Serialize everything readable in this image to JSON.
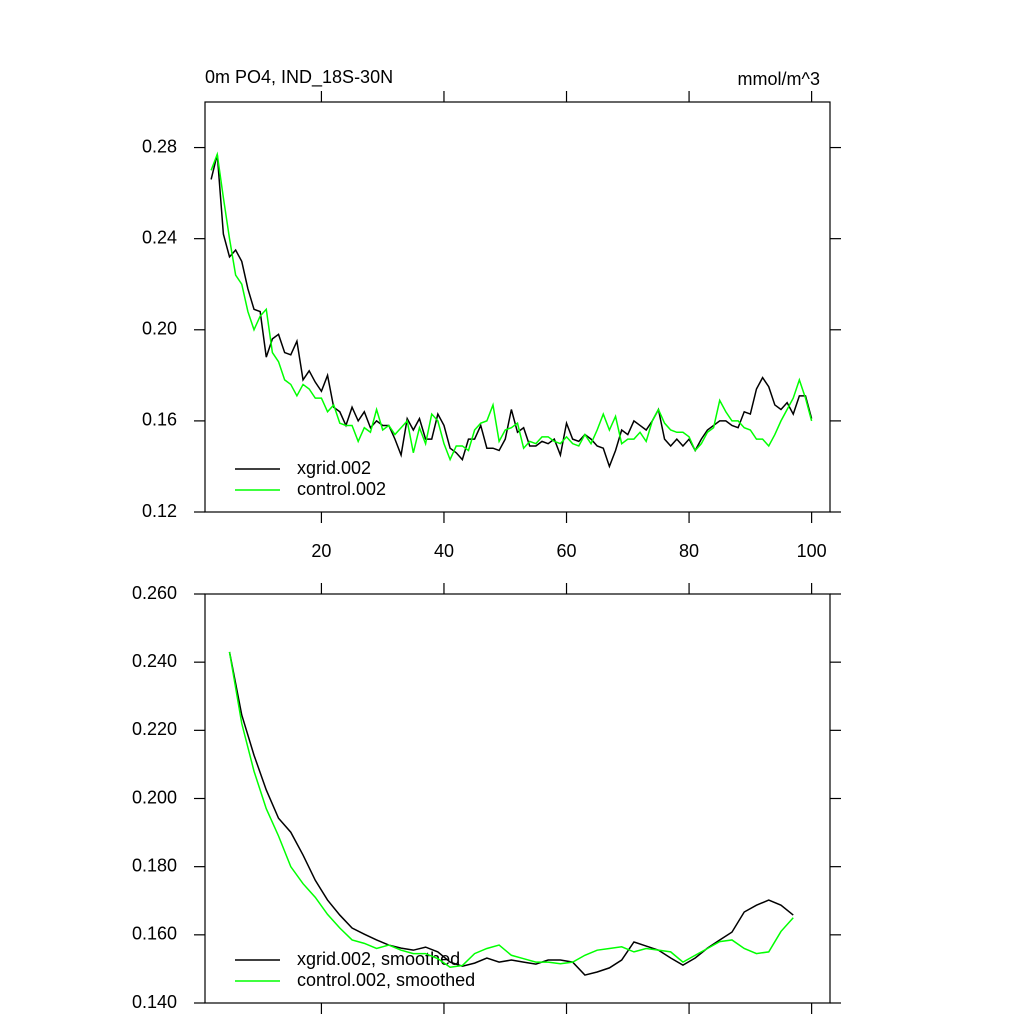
{
  "chart_data": [
    {
      "type": "line",
      "title": "0m PO4, IND_18S-30N",
      "units": "mmol/m^3",
      "xlim": [
        1,
        103
      ],
      "ylim": [
        0.12,
        0.3
      ],
      "xticks": [
        20,
        40,
        60,
        80,
        100
      ],
      "xtick_labels": true,
      "yticks": [
        0.12,
        0.16,
        {
          "value": 0.2,
          "label": "0.20"
        },
        0.24,
        0.28
      ],
      "legend": "lower left",
      "x": [
        2,
        3,
        4,
        5,
        6,
        7,
        8,
        9,
        10,
        11,
        12,
        13,
        14,
        15,
        16,
        17,
        18,
        19,
        20,
        21,
        22,
        23,
        24,
        25,
        26,
        27,
        28,
        29,
        30,
        31,
        32,
        33,
        34,
        35,
        36,
        37,
        38,
        39,
        40,
        41,
        42,
        43,
        44,
        45,
        46,
        47,
        48,
        49,
        50,
        51,
        52,
        53,
        54,
        55,
        56,
        57,
        58,
        59,
        60,
        61,
        62,
        63,
        64,
        65,
        66,
        67,
        68,
        69,
        70,
        71,
        72,
        73,
        74,
        75,
        76,
        77,
        78,
        79,
        80,
        81,
        82,
        83,
        84,
        85,
        86,
        87,
        88,
        89,
        90,
        91,
        92,
        93,
        94,
        95,
        96,
        97,
        98,
        99,
        100
      ],
      "series": [
        {
          "name": "xgrid.002",
          "color": "#000000",
          "values": [
            0.266,
            0.277,
            0.242,
            0.232,
            0.235,
            0.23,
            0.218,
            0.209,
            0.208,
            0.188,
            0.196,
            0.198,
            0.19,
            0.189,
            0.195,
            0.178,
            0.182,
            0.177,
            0.173,
            0.18,
            0.166,
            0.164,
            0.158,
            0.166,
            0.16,
            0.164,
            0.157,
            0.16,
            0.158,
            0.158,
            0.152,
            0.145,
            0.161,
            0.156,
            0.161,
            0.152,
            0.152,
            0.163,
            0.158,
            0.148,
            0.146,
            0.143,
            0.152,
            0.152,
            0.158,
            0.148,
            0.148,
            0.147,
            0.152,
            0.165,
            0.155,
            0.157,
            0.149,
            0.149,
            0.151,
            0.15,
            0.152,
            0.145,
            0.159,
            0.152,
            0.151,
            0.154,
            0.152,
            0.149,
            0.148,
            0.14,
            0.147,
            0.156,
            0.154,
            0.16,
            0.158,
            0.156,
            0.16,
            0.165,
            0.152,
            0.149,
            0.152,
            0.149,
            0.152,
            0.147,
            0.152,
            0.156,
            0.158,
            0.16,
            0.16,
            0.158,
            0.157,
            0.164,
            0.163,
            0.174,
            0.179,
            0.175,
            0.167,
            0.165,
            0.168,
            0.163,
            0.171,
            0.171,
            0.161
          ]
        },
        {
          "name": "control.002",
          "color": "#00ff00",
          "values": [
            0.27,
            0.277,
            0.258,
            0.24,
            0.224,
            0.22,
            0.208,
            0.2,
            0.206,
            0.209,
            0.19,
            0.186,
            0.178,
            0.176,
            0.171,
            0.176,
            0.174,
            0.17,
            0.17,
            0.164,
            0.167,
            0.159,
            0.158,
            0.158,
            0.151,
            0.157,
            0.155,
            0.165,
            0.156,
            0.158,
            0.154,
            0.157,
            0.16,
            0.146,
            0.157,
            0.15,
            0.163,
            0.16,
            0.15,
            0.143,
            0.149,
            0.149,
            0.147,
            0.156,
            0.159,
            0.16,
            0.167,
            0.151,
            0.156,
            0.157,
            0.159,
            0.148,
            0.151,
            0.15,
            0.153,
            0.153,
            0.151,
            0.15,
            0.153,
            0.15,
            0.149,
            0.154,
            0.15,
            0.156,
            0.163,
            0.156,
            0.162,
            0.15,
            0.152,
            0.152,
            0.155,
            0.151,
            0.16,
            0.165,
            0.159,
            0.156,
            0.155,
            0.155,
            0.153,
            0.147,
            0.15,
            0.155,
            0.157,
            0.169,
            0.164,
            0.16,
            0.16,
            0.157,
            0.156,
            0.152,
            0.152,
            0.149,
            0.154,
            0.16,
            0.165,
            0.17,
            0.178,
            0.17,
            0.16
          ]
        }
      ]
    },
    {
      "type": "line",
      "xlim": [
        1,
        103
      ],
      "ylim": [
        0.14,
        0.26
      ],
      "xticks": [
        20,
        40,
        60,
        80,
        100
      ],
      "xtick_labels": false,
      "yticks": [
        {
          "value": 0.14,
          "label": "0.140"
        },
        {
          "value": 0.16,
          "label": "0.160"
        },
        {
          "value": 0.18,
          "label": "0.180"
        },
        {
          "value": 0.2,
          "label": "0.200"
        },
        {
          "value": 0.22,
          "label": "0.220"
        },
        {
          "value": 0.24,
          "label": "0.240"
        },
        {
          "value": 0.26,
          "label": "0.260"
        }
      ],
      "legend": "lower left",
      "x": [
        5,
        7,
        9,
        11,
        13,
        15,
        17,
        19,
        21,
        23,
        25,
        27,
        29,
        31,
        33,
        35,
        37,
        39,
        41,
        43,
        45,
        47,
        49,
        51,
        53,
        55,
        57,
        59,
        61,
        63,
        65,
        67,
        69,
        71,
        73,
        75,
        77,
        79,
        81,
        83,
        85,
        87,
        89,
        91,
        93,
        95,
        97
      ],
      "series": [
        {
          "name": "xgrid.002, smoothed",
          "color": "#000000",
          "values": [
            0.243,
            0.2245,
            0.2127,
            0.2025,
            0.1942,
            0.1901,
            0.1834,
            0.176,
            0.1702,
            0.1658,
            0.162,
            0.1602,
            0.1585,
            0.157,
            0.1561,
            0.1555,
            0.1564,
            0.155,
            0.152,
            0.1508,
            0.1517,
            0.1532,
            0.152,
            0.1526,
            0.152,
            0.1514,
            0.1526,
            0.1526,
            0.152,
            0.1482,
            0.1491,
            0.1503,
            0.1526,
            0.1579,
            0.1567,
            0.1555,
            0.1532,
            0.1511,
            0.1532,
            0.1561,
            0.1585,
            0.1608,
            0.1667,
            0.1687,
            0.1702,
            0.1687,
            0.1658
          ]
        },
        {
          "name": "control.002, smoothed",
          "color": "#00ff00",
          "values": [
            0.243,
            0.222,
            0.208,
            0.197,
            0.189,
            0.18,
            0.175,
            0.171,
            0.166,
            0.162,
            0.1585,
            0.1575,
            0.156,
            0.157,
            0.1555,
            0.1545,
            0.1545,
            0.153,
            0.1505,
            0.151,
            0.1545,
            0.156,
            0.157,
            0.154,
            0.153,
            0.152,
            0.152,
            0.1515,
            0.152,
            0.154,
            0.1555,
            0.156,
            0.1565,
            0.155,
            0.156,
            0.1555,
            0.155,
            0.152,
            0.154,
            0.156,
            0.158,
            0.1585,
            0.156,
            0.1545,
            0.155,
            0.161,
            0.165
          ]
        }
      ]
    }
  ]
}
